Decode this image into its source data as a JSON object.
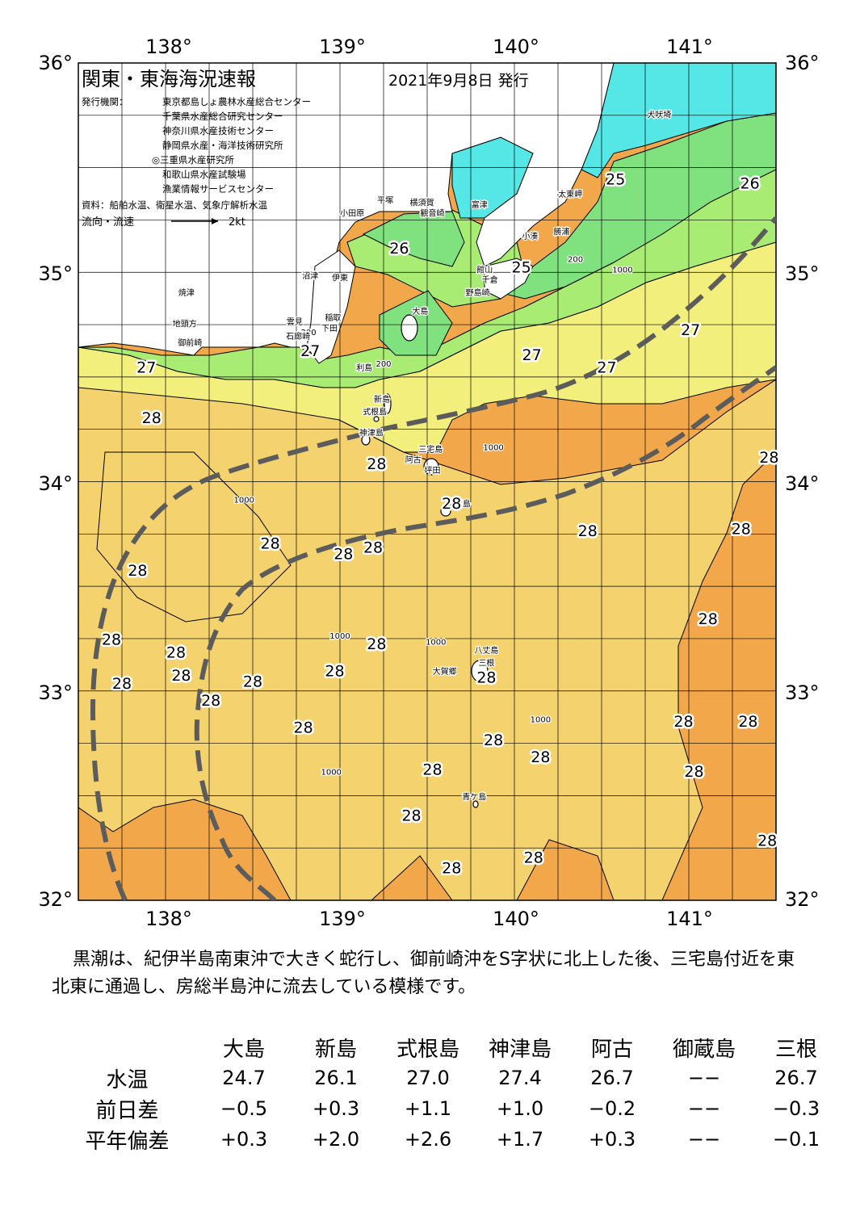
{
  "map": {
    "title": "関東・東海海況速報",
    "date": "2021年9月8日 発行",
    "issuer_label": "発行機関：",
    "issuers": [
      "東京都島しょ農林水産総合センター",
      "千葉県水産総合研究センター",
      "神奈川県水産技術センター",
      "静岡県水産・海洋技術研究所",
      "◎三重県水産研究所",
      "和歌山県水産試験場",
      "漁業情報サービスセンター"
    ],
    "source": "資料：船舶水温、衛星水温、気象庁解析水温",
    "flow_label": "流向・流速",
    "flow_scale": "2kt",
    "lon_labels": [
      "138°",
      "139°",
      "140°",
      "141°"
    ],
    "lat_labels": [
      "36°",
      "35°",
      "34°",
      "33°",
      "32°"
    ],
    "lon_range": [
      137.5,
      141.5
    ],
    "lat_range": [
      32,
      36
    ],
    "colors": {
      "t24": "#55e7e5",
      "t25": "#7fe27f",
      "t26": "#a9ec73",
      "t27": "#f3ef7c",
      "t27_5": "#f4d26e",
      "t28": "#f2a84a",
      "land": "#ffffff",
      "kuroshio": "#5c5c5c"
    },
    "isotherm_labels": [
      {
        "text": "25",
        "lon": 140.58,
        "lat": 35.42
      },
      {
        "text": "26",
        "lon": 141.35,
        "lat": 35.4
      },
      {
        "text": "26",
        "lon": 139.34,
        "lat": 35.09
      },
      {
        "text": "25",
        "lon": 140.04,
        "lat": 35.0
      },
      {
        "text": "27",
        "lon": 138.83,
        "lat": 34.6
      },
      {
        "text": "27",
        "lon": 137.89,
        "lat": 34.52
      },
      {
        "text": "27",
        "lon": 140.1,
        "lat": 34.58
      },
      {
        "text": "27",
        "lon": 140.53,
        "lat": 34.52
      },
      {
        "text": "27",
        "lon": 141.01,
        "lat": 34.7
      },
      {
        "text": "28",
        "lon": 137.92,
        "lat": 34.28
      },
      {
        "text": "28",
        "lon": 139.21,
        "lat": 34.06
      },
      {
        "text": "28",
        "lon": 141.46,
        "lat": 34.09
      },
      {
        "text": "28",
        "lon": 139.64,
        "lat": 33.87
      },
      {
        "text": "28",
        "lon": 141.3,
        "lat": 33.75
      },
      {
        "text": "28",
        "lon": 140.42,
        "lat": 33.74
      },
      {
        "text": "28",
        "lon": 138.6,
        "lat": 33.68
      },
      {
        "text": "28",
        "lon": 139.02,
        "lat": 33.63
      },
      {
        "text": "28",
        "lon": 139.19,
        "lat": 33.66
      },
      {
        "text": "28",
        "lon": 137.84,
        "lat": 33.55
      },
      {
        "text": "28",
        "lon": 137.69,
        "lat": 33.22
      },
      {
        "text": "28",
        "lon": 138.06,
        "lat": 33.16
      },
      {
        "text": "28",
        "lon": 139.21,
        "lat": 33.2
      },
      {
        "text": "28",
        "lon": 141.11,
        "lat": 33.32
      },
      {
        "text": "28",
        "lon": 138.09,
        "lat": 33.05
      },
      {
        "text": "28",
        "lon": 138.97,
        "lat": 33.07
      },
      {
        "text": "28",
        "lon": 138.5,
        "lat": 33.02
      },
      {
        "text": "28",
        "lon": 137.75,
        "lat": 33.01
      },
      {
        "text": "28",
        "lon": 139.84,
        "lat": 33.04
      },
      {
        "text": "28",
        "lon": 138.26,
        "lat": 32.93
      },
      {
        "text": "28",
        "lon": 138.79,
        "lat": 32.8
      },
      {
        "text": "28",
        "lon": 140.97,
        "lat": 32.83
      },
      {
        "text": "28",
        "lon": 141.34,
        "lat": 32.83
      },
      {
        "text": "28",
        "lon": 139.88,
        "lat": 32.74
      },
      {
        "text": "28",
        "lon": 140.15,
        "lat": 32.66
      },
      {
        "text": "28",
        "lon": 139.53,
        "lat": 32.6
      },
      {
        "text": "28",
        "lon": 141.03,
        "lat": 32.59
      },
      {
        "text": "28",
        "lon": 139.41,
        "lat": 32.38
      },
      {
        "text": "28",
        "lon": 140.11,
        "lat": 32.18
      },
      {
        "text": "28",
        "lon": 141.45,
        "lat": 32.26
      },
      {
        "text": "28",
        "lon": 139.64,
        "lat": 32.13
      }
    ],
    "place_names": [
      {
        "text": "犬吠埼",
        "lon": 140.83,
        "lat": 35.74
      },
      {
        "text": "太東岬",
        "lon": 140.32,
        "lat": 35.36
      },
      {
        "text": "勝浦",
        "lon": 140.27,
        "lat": 35.18
      },
      {
        "text": "小湊",
        "lon": 140.09,
        "lat": 35.16
      },
      {
        "text": "富津",
        "lon": 139.8,
        "lat": 35.31
      },
      {
        "text": "観音崎",
        "lon": 139.53,
        "lat": 35.27
      },
      {
        "text": "横須賀",
        "lon": 139.47,
        "lat": 35.32
      },
      {
        "text": "平塚",
        "lon": 139.26,
        "lat": 35.33
      },
      {
        "text": "小田原",
        "lon": 139.07,
        "lat": 35.27
      },
      {
        "text": "館山",
        "lon": 139.83,
        "lat": 35.0
      },
      {
        "text": "千倉",
        "lon": 139.86,
        "lat": 34.95
      },
      {
        "text": "野島崎",
        "lon": 139.79,
        "lat": 34.89
      },
      {
        "text": "沼津",
        "lon": 138.83,
        "lat": 34.97
      },
      {
        "text": "伊東",
        "lon": 139.0,
        "lat": 34.96
      },
      {
        "text": "焼津",
        "lon": 138.12,
        "lat": 34.89
      },
      {
        "text": "大島",
        "lon": 139.46,
        "lat": 34.8
      },
      {
        "text": "稲取",
        "lon": 138.96,
        "lat": 34.77
      },
      {
        "text": "下田",
        "lon": 138.94,
        "lat": 34.72
      },
      {
        "text": "雲見",
        "lon": 138.74,
        "lat": 34.75
      },
      {
        "text": "石廊崎",
        "lon": 138.76,
        "lat": 34.68
      },
      {
        "text": "地頭方",
        "lon": 138.11,
        "lat": 34.74
      },
      {
        "text": "御前崎",
        "lon": 138.14,
        "lat": 34.65
      },
      {
        "text": "利島",
        "lon": 139.14,
        "lat": 34.53
      },
      {
        "text": "新島",
        "lon": 139.24,
        "lat": 34.38
      },
      {
        "text": "式根島",
        "lon": 139.2,
        "lat": 34.32
      },
      {
        "text": "神津島",
        "lon": 139.18,
        "lat": 34.22
      },
      {
        "text": "阿古",
        "lon": 139.42,
        "lat": 34.09
      },
      {
        "text": "三宅島",
        "lon": 139.52,
        "lat": 34.14
      },
      {
        "text": "坪田",
        "lon": 139.53,
        "lat": 34.04
      },
      {
        "text": "御蔵島",
        "lon": 139.68,
        "lat": 33.88
      },
      {
        "text": "八丈島",
        "lon": 139.84,
        "lat": 33.18
      },
      {
        "text": "三根",
        "lon": 139.84,
        "lat": 33.12
      },
      {
        "text": "大賀郷",
        "lon": 139.6,
        "lat": 33.08
      },
      {
        "text": "青ケ島",
        "lon": 139.77,
        "lat": 32.48
      }
    ],
    "depth_labels": [
      {
        "text": "1000",
        "lon": 139.88,
        "lat": 34.15
      },
      {
        "text": "1000",
        "lon": 140.62,
        "lat": 35.0
      },
      {
        "text": "200",
        "lon": 140.35,
        "lat": 35.05
      },
      {
        "text": "1000",
        "lon": 138.45,
        "lat": 33.9
      },
      {
        "text": "1000",
        "lon": 139.0,
        "lat": 33.25
      },
      {
        "text": "1000",
        "lon": 139.55,
        "lat": 33.22
      },
      {
        "text": "1000",
        "lon": 140.15,
        "lat": 32.85
      },
      {
        "text": "1000",
        "lon": 138.95,
        "lat": 32.6
      },
      {
        "text": "200",
        "lon": 139.25,
        "lat": 34.55
      },
      {
        "text": "200",
        "lon": 138.82,
        "lat": 34.7
      }
    ]
  },
  "summary": "黒潮は、紀伊半島南東沖で大きく蛇行し、御前崎沖をS字状に北上した後、三宅島付近を東北東に通過し、房総半島沖に流去している模様です。",
  "table": {
    "row_headers": [
      "水温",
      "前日差",
      "平年偏差"
    ],
    "stations": [
      "大島",
      "新島",
      "式根島",
      "神津島",
      "阿古",
      "御蔵島",
      "三根"
    ],
    "rows": [
      [
        "24.7",
        "26.1",
        "27.0",
        "27.4",
        "26.7",
        "−−",
        "26.7"
      ],
      [
        "−0.5",
        "+0.3",
        "+1.1",
        "+1.0",
        "−0.2",
        "−−",
        "−0.3"
      ],
      [
        "+0.3",
        "+2.0",
        "+2.6",
        "+1.7",
        "+0.3",
        "−−",
        "−0.1"
      ]
    ]
  }
}
